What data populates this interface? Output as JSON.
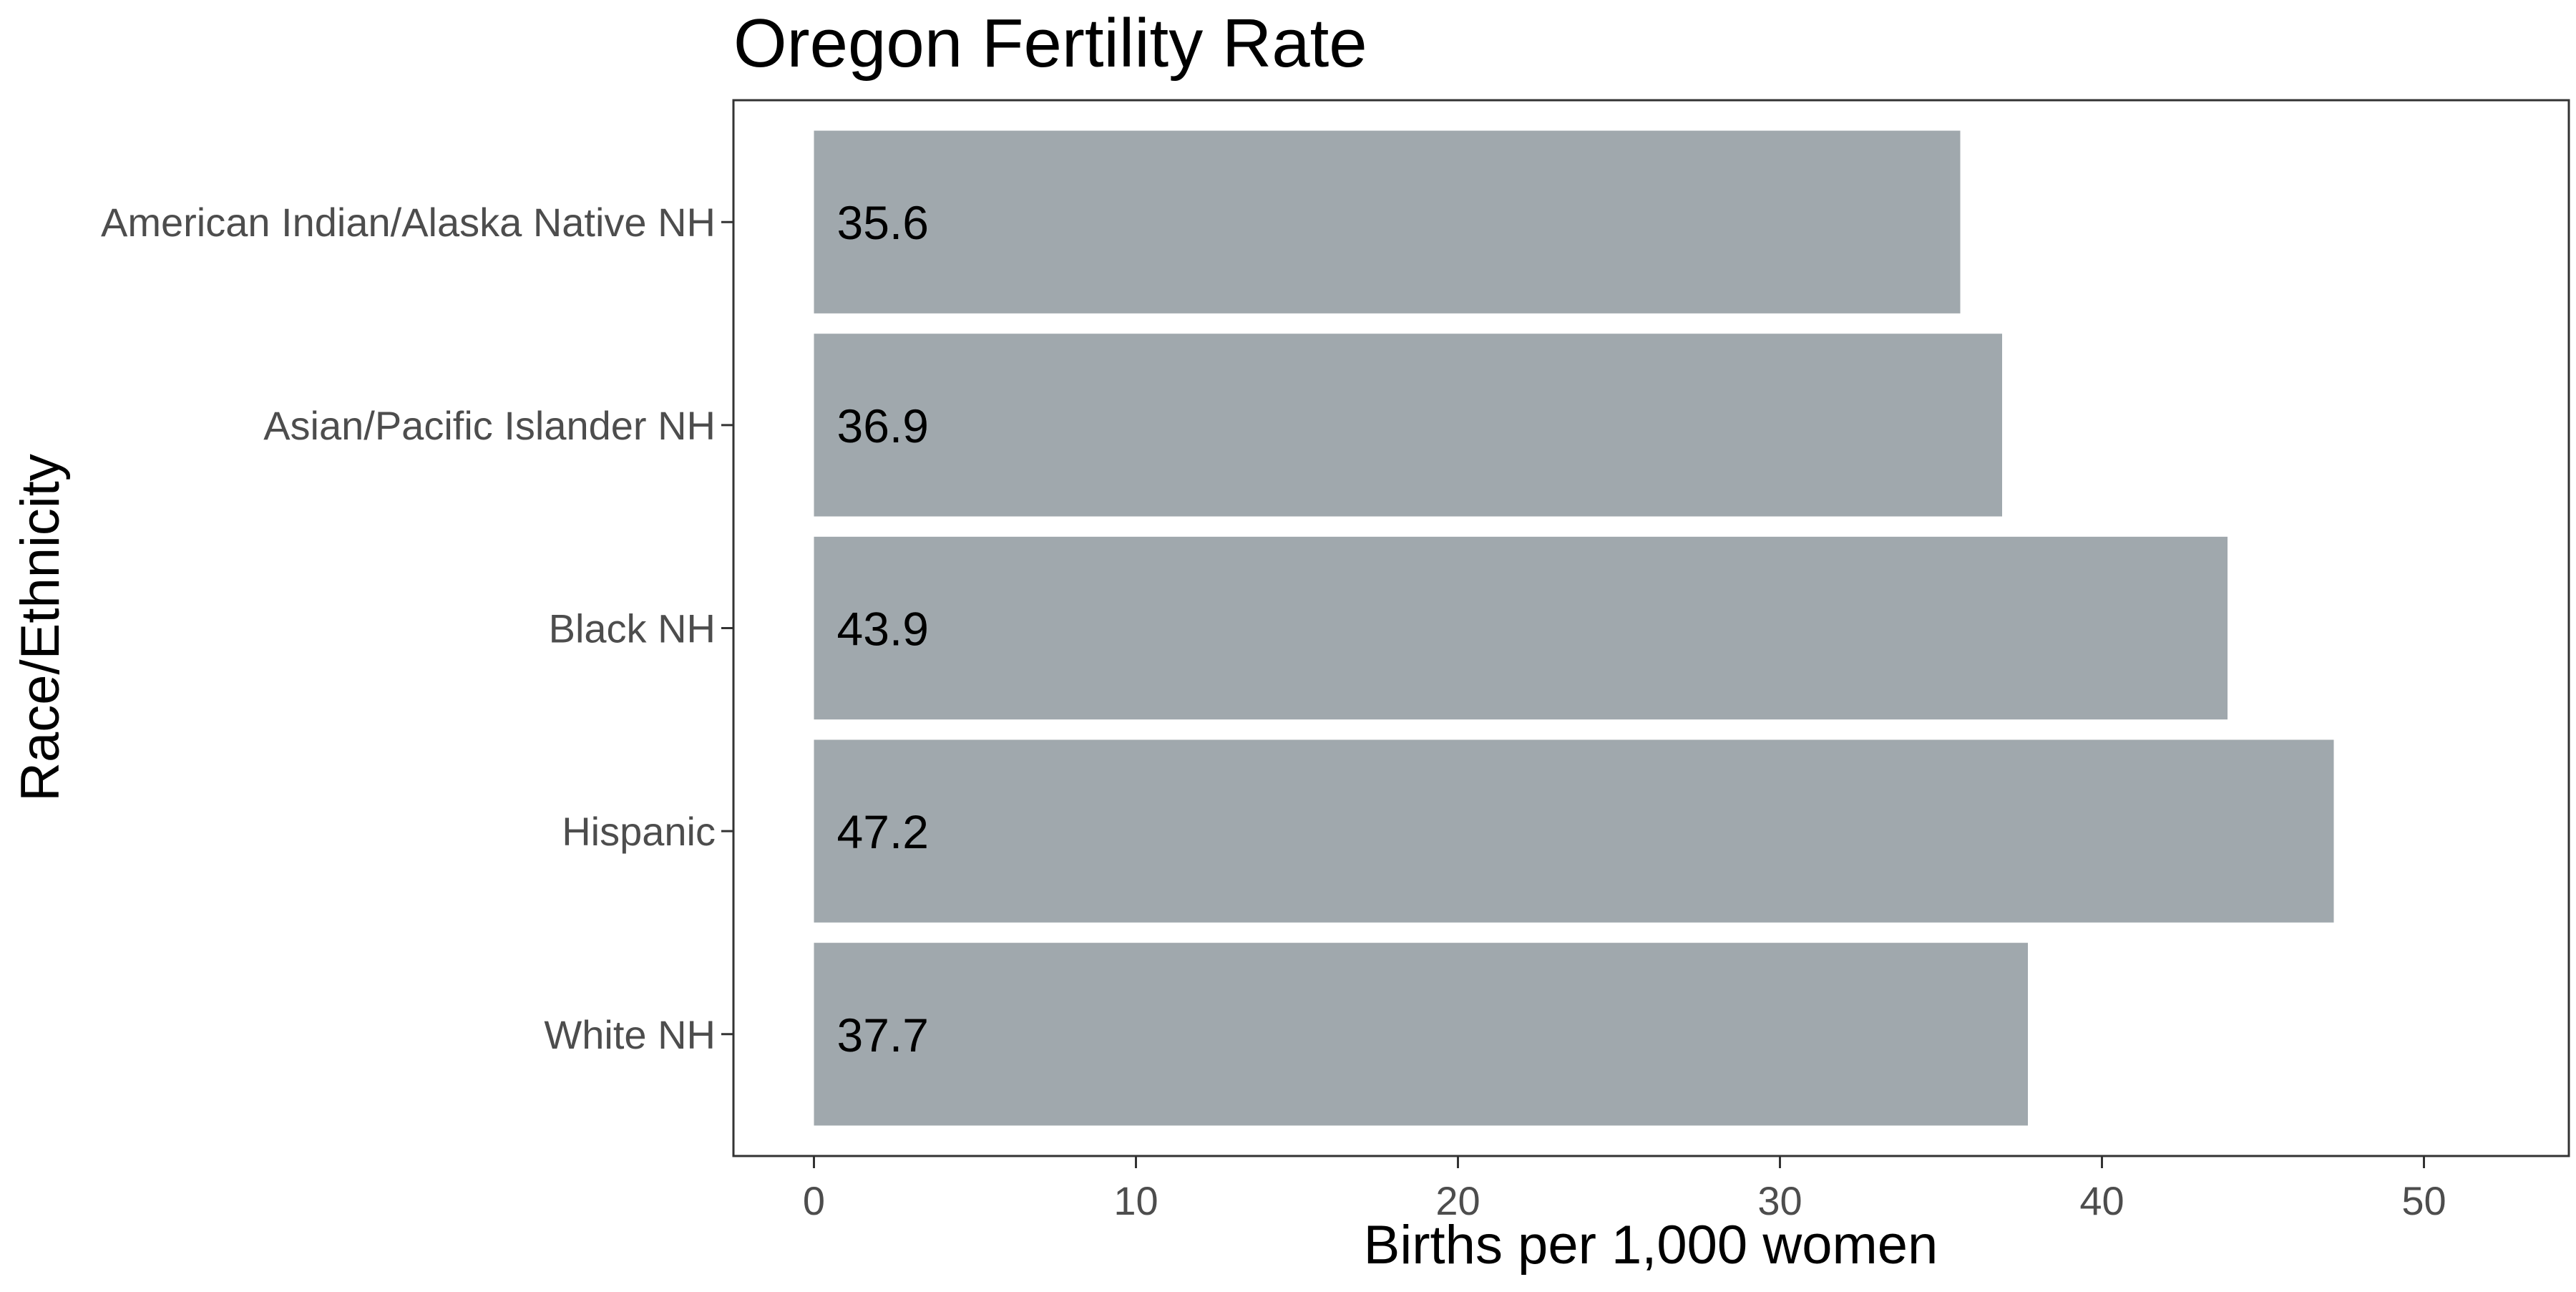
{
  "chart_data": {
    "type": "bar",
    "orientation": "horizontal",
    "title": "Oregon Fertility Rate",
    "xlabel": "Births per 1,000 women",
    "ylabel": "Race/Ethnicity",
    "categories": [
      "American Indian/Alaska Native NH",
      "Asian/Pacific Islander NH",
      "Black NH",
      "Hispanic",
      "White NH"
    ],
    "values": [
      35.6,
      36.9,
      43.9,
      47.2,
      37.7
    ],
    "value_labels": [
      "35.6",
      "36.9",
      "43.9",
      "47.2",
      "37.7"
    ],
    "xlim": [
      -2.5,
      54.5
    ],
    "xticks": [
      0,
      10,
      20,
      30,
      40,
      50
    ],
    "xtick_labels": [
      "0",
      "10",
      "20",
      "30",
      "40",
      "50"
    ],
    "grid": false,
    "legend": "none",
    "colors": {
      "bar": "#a0a8ad",
      "background": "#ffffff",
      "text": "#000000",
      "tick_text": "#4d4d4d"
    }
  }
}
